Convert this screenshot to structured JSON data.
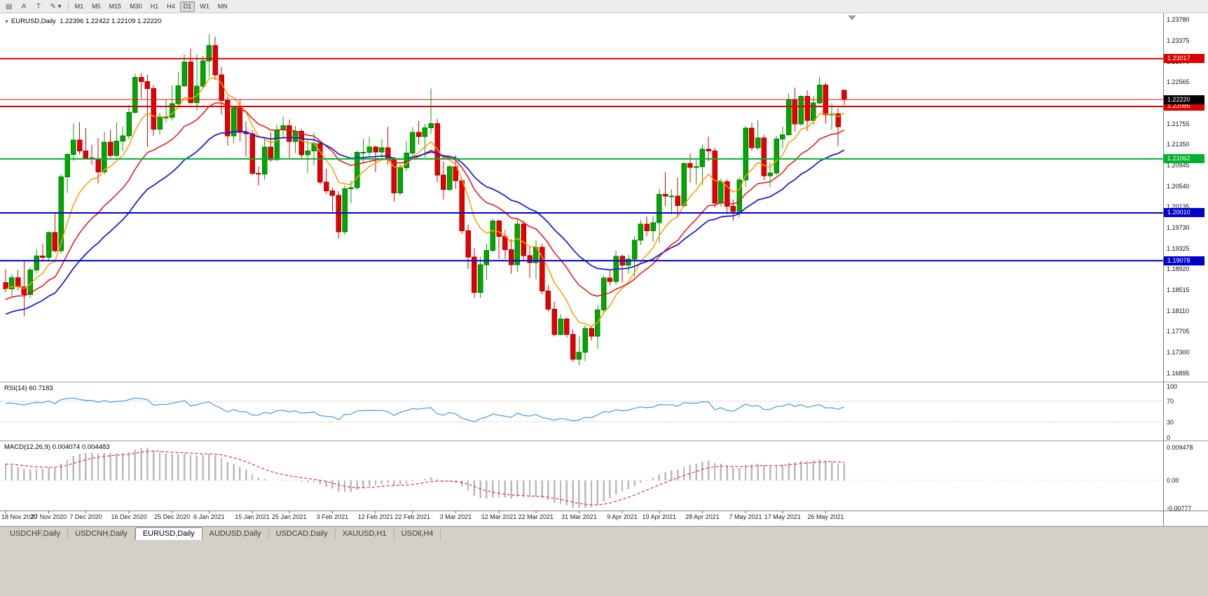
{
  "toolbar": {
    "tools": [
      {
        "name": "chart-grid-icon",
        "glyph": "▤"
      },
      {
        "name": "cursor-tool-button",
        "glyph": "A"
      },
      {
        "name": "text-tool-button",
        "glyph": "T"
      },
      {
        "name": "draw-tools-button",
        "glyph": "✎ ▾"
      }
    ],
    "timeframes": [
      "M1",
      "M5",
      "M15",
      "M30",
      "H1",
      "H4",
      "D1",
      "W1",
      "MN"
    ],
    "active_timeframe": "D1"
  },
  "main_chart": {
    "collapse_arrow": "▼",
    "title": "EURUSD,Daily",
    "ohlc_text": "1.22396 1.22422 1.22109 1.22220",
    "current_price": "1.22220"
  },
  "rsi_panel": {
    "label": "RSI(14) 60.7183",
    "current_value": "60.7183",
    "ticks": [
      "100",
      "70",
      "30",
      "0"
    ],
    "level_lines": [
      70,
      30
    ]
  },
  "macd_panel": {
    "label": "MACD(12,26,9) 0.004074 0.004483",
    "current_values": [
      "0.004074",
      "0.004483"
    ],
    "ticks": [
      "0.009478",
      "0.00",
      "-0.00777"
    ]
  },
  "tabs": {
    "items": [
      "USDCHF,Daily",
      "USDCNH,Daily",
      "EURUSD,Daily",
      "AUDUSD,Daily",
      "USDCAD,Daily",
      "XAUUSD,H1",
      "USOil,H4"
    ],
    "active_index": 2
  },
  "colors": {
    "candle_up": "#00a800",
    "candle_up_border": "#007c00",
    "candle_down": "#e60000",
    "candle_down_border": "#a80000",
    "ma_fast": "#ff9c00",
    "ma_medium": "#e81010",
    "ma_slow": "#2020cc",
    "rsi_line": "#559fdc",
    "rsi_level_dash": "#bdbdbd",
    "macd_histogram": "#b9b9b9",
    "macd_signal": "#e03030",
    "current_price_tag_bg": "#000000",
    "bid_line": "#e81010"
  },
  "chart_data": {
    "type": "candlestick",
    "title": "EURUSD,Daily",
    "y_axis": {
      "min": 1.1672,
      "max": 1.239,
      "tick_labels": [
        "1.23780",
        "1.23375",
        "1.22970",
        "1.22565",
        "1.22160",
        "1.21755",
        "1.21350",
        "1.20945",
        "1.20540",
        "1.20135",
        "1.19730",
        "1.19325",
        "1.18920",
        "1.18515",
        "1.18110",
        "1.17705",
        "1.17300",
        "1.16895"
      ]
    },
    "x_axis": {
      "ticks": [
        {
          "label": "18 Nov 2020",
          "bar": 0
        },
        {
          "label": "27 Nov 2020",
          "bar": 7
        },
        {
          "label": "7 Dec 2020",
          "bar": 13
        },
        {
          "label": "16 Dec 2020",
          "bar": 20
        },
        {
          "label": "25 Dec 2020",
          "bar": 27
        },
        {
          "label": "6 Jan 2021",
          "bar": 33
        },
        {
          "label": "15 Jan 2021",
          "bar": 40
        },
        {
          "label": "25 Jan 2021",
          "bar": 46
        },
        {
          "label": "3 Feb 2021",
          "bar": 53
        },
        {
          "label": "12 Feb 2021",
          "bar": 60
        },
        {
          "label": "22 Feb 2021",
          "bar": 66
        },
        {
          "label": "3 Mar 2021",
          "bar": 73
        },
        {
          "label": "12 Mar 2021",
          "bar": 80
        },
        {
          "label": "22 Mar 2021",
          "bar": 86
        },
        {
          "label": "31 Mar 2021",
          "bar": 93
        },
        {
          "label": "9 Apr 2021",
          "bar": 100
        },
        {
          "label": "19 Apr 2021",
          "bar": 106
        },
        {
          "label": "28 Apr 2021",
          "bar": 113
        },
        {
          "label": "7 May 2021",
          "bar": 120
        },
        {
          "label": "17 May 2021",
          "bar": 126
        },
        {
          "label": "26 May 2021",
          "bar": 133
        }
      ]
    },
    "overlays": {
      "horizontal_lines": [
        {
          "price": 1.23017,
          "label": "1.23017",
          "color": "#dd0000",
          "width": 2
        },
        {
          "price": 1.22085,
          "label": "1.22085",
          "color": "#dd0000",
          "width": 2
        },
        {
          "price": 1.21062,
          "label": "1.21062",
          "color": "#00b22c",
          "width": 2
        },
        {
          "price": 1.2001,
          "label": "1.20010",
          "color": "#0000cc",
          "width": 2
        },
        {
          "price": 1.19078,
          "label": "1.19078",
          "color": "#0000cc",
          "width": 2
        }
      ],
      "moving_average_colors": [
        "#ff9c00",
        "#e81010",
        "#2020cc"
      ]
    },
    "indicators": [
      {
        "name": "RSI",
        "params": "14",
        "current": "60.7183",
        "scale": [
          0,
          100
        ],
        "levels": [
          70,
          30
        ]
      },
      {
        "name": "MACD",
        "params": "12,26,9",
        "current_main": "0.004074",
        "current_signal": "0.004483",
        "scale_labels": [
          "0.009478",
          "0.00",
          "-0.00777"
        ]
      }
    ],
    "last_bar": {
      "open": "1.22396",
      "high": "1.22422",
      "low": "1.22109",
      "close": "1.22220"
    },
    "series": [
      {
        "name": "EURUSD",
        "format": [
          "open",
          "high",
          "low",
          "close"
        ],
        "candles": [
          [
            1.1865,
            1.1891,
            1.1847,
            1.1853
          ],
          [
            1.1853,
            1.1882,
            1.1836,
            1.1875
          ],
          [
            1.1875,
            1.189,
            1.185,
            1.1857
          ],
          [
            1.1857,
            1.1906,
            1.18,
            1.1842
          ],
          [
            1.1842,
            1.1895,
            1.1835,
            1.189
          ],
          [
            1.189,
            1.193,
            1.1883,
            1.1917
          ],
          [
            1.1917,
            1.1941,
            1.1906,
            1.1914
          ],
          [
            1.1914,
            1.1965,
            1.1908,
            1.1963
          ],
          [
            1.1963,
            1.2003,
            1.1923,
            1.1927
          ],
          [
            1.1927,
            1.2077,
            1.1922,
            1.2071
          ],
          [
            1.2071,
            1.2118,
            1.204,
            1.2115
          ],
          [
            1.2115,
            1.2175,
            1.2103,
            1.2143
          ],
          [
            1.2143,
            1.2178,
            1.2115,
            1.2122
          ],
          [
            1.2122,
            1.2166,
            1.2106,
            1.2108
          ],
          [
            1.2108,
            1.2134,
            1.2095,
            1.2106
          ],
          [
            1.2106,
            1.2147,
            1.2058,
            1.2081
          ],
          [
            1.2081,
            1.2159,
            1.2076,
            1.2139
          ],
          [
            1.2139,
            1.2163,
            1.2109,
            1.2113
          ],
          [
            1.2113,
            1.2177,
            1.211,
            1.2141
          ],
          [
            1.2141,
            1.2169,
            1.2121,
            1.2151
          ],
          [
            1.2151,
            1.2212,
            1.2144,
            1.2197
          ],
          [
            1.2197,
            1.2272,
            1.2195,
            1.2265
          ],
          [
            1.2265,
            1.2273,
            1.2224,
            1.2257
          ],
          [
            1.2257,
            1.227,
            1.213,
            1.2243
          ],
          [
            1.2243,
            1.225,
            1.2151,
            1.2164
          ],
          [
            1.2164,
            1.2196,
            1.2153,
            1.2187
          ],
          [
            1.2187,
            1.2222,
            1.2178,
            1.2187
          ],
          [
            1.2187,
            1.225,
            1.2181,
            1.2214
          ],
          [
            1.2214,
            1.2275,
            1.2208,
            1.2249
          ],
          [
            1.2249,
            1.231,
            1.2247,
            1.2295
          ],
          [
            1.2295,
            1.2321,
            1.2214,
            1.2216
          ],
          [
            1.2216,
            1.231,
            1.22,
            1.2248
          ],
          [
            1.2248,
            1.2307,
            1.2245,
            1.2297
          ],
          [
            1.2297,
            1.2349,
            1.2266,
            1.2327
          ],
          [
            1.2327,
            1.2345,
            1.226,
            1.227
          ],
          [
            1.227,
            1.2285,
            1.2193,
            1.222
          ],
          [
            1.222,
            1.2228,
            1.2132,
            1.2151
          ],
          [
            1.2151,
            1.221,
            1.2137,
            1.2206
          ],
          [
            1.2206,
            1.2223,
            1.214,
            1.2158
          ],
          [
            1.2158,
            1.218,
            1.2111,
            1.2155
          ],
          [
            1.2155,
            1.2163,
            1.2075,
            1.2078
          ],
          [
            1.2078,
            1.2091,
            1.2054,
            1.2077
          ],
          [
            1.2077,
            1.2144,
            1.2066,
            1.2129
          ],
          [
            1.2129,
            1.2158,
            1.2101,
            1.2105
          ],
          [
            1.2105,
            1.2173,
            1.2103,
            1.2163
          ],
          [
            1.2163,
            1.2189,
            1.2151,
            1.2171
          ],
          [
            1.2171,
            1.2183,
            1.2108,
            1.214
          ],
          [
            1.214,
            1.217,
            1.2118,
            1.216
          ],
          [
            1.216,
            1.2164,
            1.2108,
            1.2114
          ],
          [
            1.2114,
            1.2142,
            1.2078,
            1.2122
          ],
          [
            1.2122,
            1.2157,
            1.2093,
            1.2136
          ],
          [
            1.2136,
            1.2137,
            1.2056,
            1.2061
          ],
          [
            1.2061,
            1.2087,
            1.2038,
            1.2044
          ],
          [
            1.2044,
            1.205,
            1.2003,
            1.2035
          ],
          [
            1.2035,
            1.2043,
            1.1952,
            1.1964
          ],
          [
            1.1964,
            1.2055,
            1.1958,
            1.2048
          ],
          [
            1.2048,
            1.2064,
            1.202,
            1.205
          ],
          [
            1.205,
            1.2122,
            1.2046,
            1.2119
          ],
          [
            1.2119,
            1.2145,
            1.2097,
            1.2119
          ],
          [
            1.2119,
            1.215,
            1.2109,
            1.2129
          ],
          [
            1.2129,
            1.2133,
            1.208,
            1.212
          ],
          [
            1.212,
            1.2144,
            1.2108,
            1.2128
          ],
          [
            1.2128,
            1.2169,
            1.2096,
            1.2106
          ],
          [
            1.2106,
            1.211,
            1.2023,
            1.204
          ],
          [
            1.204,
            1.2096,
            1.2035,
            1.2089
          ],
          [
            1.2089,
            1.2141,
            1.2082,
            1.2118
          ],
          [
            1.2118,
            1.2168,
            1.2107,
            1.2158
          ],
          [
            1.2158,
            1.218,
            1.2134,
            1.215
          ],
          [
            1.215,
            1.2174,
            1.2109,
            1.2167
          ],
          [
            1.2167,
            1.2243,
            1.2155,
            1.2175
          ],
          [
            1.2175,
            1.2184,
            1.2061,
            1.2075
          ],
          [
            1.2075,
            1.2101,
            1.2027,
            1.2047
          ],
          [
            1.2047,
            1.2094,
            1.2043,
            1.2091
          ],
          [
            1.2091,
            1.2113,
            1.2048,
            1.2064
          ],
          [
            1.2064,
            1.207,
            1.196,
            1.1966
          ],
          [
            1.1966,
            1.1978,
            1.1892,
            1.1915
          ],
          [
            1.1915,
            1.1932,
            1.1836,
            1.1846
          ],
          [
            1.1846,
            1.1915,
            1.1836,
            1.19
          ],
          [
            1.19,
            1.1941,
            1.187,
            1.1928
          ],
          [
            1.1928,
            1.199,
            1.1924,
            1.1985
          ],
          [
            1.1985,
            1.1988,
            1.1911,
            1.1955
          ],
          [
            1.1955,
            1.1968,
            1.1911,
            1.1929
          ],
          [
            1.1929,
            1.195,
            1.1882,
            1.19
          ],
          [
            1.19,
            1.1989,
            1.1886,
            1.1979
          ],
          [
            1.1979,
            1.1986,
            1.1906,
            1.1918
          ],
          [
            1.1918,
            1.1936,
            1.1874,
            1.1904
          ],
          [
            1.1904,
            1.1948,
            1.1872,
            1.1934
          ],
          [
            1.1934,
            1.1941,
            1.1842,
            1.1849
          ],
          [
            1.1849,
            1.186,
            1.1809,
            1.1813
          ],
          [
            1.1813,
            1.1828,
            1.176,
            1.1764
          ],
          [
            1.1764,
            1.1804,
            1.1762,
            1.1794
          ],
          [
            1.1794,
            1.1797,
            1.1758,
            1.1764
          ],
          [
            1.1764,
            1.1774,
            1.1711,
            1.1716
          ],
          [
            1.1716,
            1.176,
            1.1704,
            1.1729
          ],
          [
            1.1729,
            1.1782,
            1.1712,
            1.1776
          ],
          [
            1.1776,
            1.178,
            1.1752,
            1.1761
          ],
          [
            1.1761,
            1.1821,
            1.1736,
            1.1812
          ],
          [
            1.1812,
            1.1878,
            1.1803,
            1.1874
          ],
          [
            1.1874,
            1.189,
            1.186,
            1.1867
          ],
          [
            1.1867,
            1.1928,
            1.1861,
            1.1916
          ],
          [
            1.1916,
            1.192,
            1.1865,
            1.1899
          ],
          [
            1.1899,
            1.1919,
            1.1882,
            1.1911
          ],
          [
            1.1911,
            1.1955,
            1.1877,
            1.1948
          ],
          [
            1.1948,
            1.1987,
            1.1938,
            1.1979
          ],
          [
            1.1979,
            1.1994,
            1.1955,
            1.1966
          ],
          [
            1.1966,
            1.1995,
            1.1945,
            1.1982
          ],
          [
            1.1982,
            1.2048,
            1.1942,
            1.2037
          ],
          [
            1.2037,
            1.208,
            1.2014,
            1.2034
          ],
          [
            1.2034,
            1.2047,
            1.1998,
            1.2034
          ],
          [
            1.2034,
            1.207,
            1.1994,
            1.2015
          ],
          [
            1.2015,
            1.21,
            1.2012,
            1.2097
          ],
          [
            1.2097,
            1.2117,
            1.206,
            1.209
          ],
          [
            1.209,
            1.2104,
            1.2056,
            1.2091
          ],
          [
            1.2091,
            1.2134,
            1.2055,
            1.2125
          ],
          [
            1.2125,
            1.215,
            1.2102,
            1.2122
          ],
          [
            1.2122,
            1.2128,
            1.2012,
            1.202
          ],
          [
            1.202,
            1.2068,
            1.2013,
            1.2062
          ],
          [
            1.2062,
            1.2067,
            1.1999,
            1.2014
          ],
          [
            1.2014,
            1.2027,
            1.1986,
            1.2004
          ],
          [
            1.2004,
            1.2071,
            1.1993,
            1.2065
          ],
          [
            1.2065,
            1.2171,
            1.2051,
            1.2166
          ],
          [
            1.2166,
            1.2177,
            1.2122,
            1.2128
          ],
          [
            1.2128,
            1.2182,
            1.2123,
            1.2147
          ],
          [
            1.2147,
            1.2153,
            1.2065,
            1.2073
          ],
          [
            1.2073,
            1.21,
            1.2051,
            1.2079
          ],
          [
            1.2079,
            1.2151,
            1.2075,
            1.2145
          ],
          [
            1.2145,
            1.2169,
            1.2126,
            1.2153
          ],
          [
            1.2153,
            1.2234,
            1.2152,
            1.2222
          ],
          [
            1.2222,
            1.2245,
            1.216,
            1.2174
          ],
          [
            1.2174,
            1.223,
            1.217,
            1.2228
          ],
          [
            1.2228,
            1.224,
            1.2161,
            1.2181
          ],
          [
            1.2181,
            1.2229,
            1.2173,
            1.2215
          ],
          [
            1.2215,
            1.2266,
            1.2212,
            1.225
          ],
          [
            1.225,
            1.2255,
            1.2175,
            1.2192
          ],
          [
            1.2192,
            1.2215,
            1.2163,
            1.2194
          ],
          [
            1.2194,
            1.2205,
            1.2131,
            1.2169
          ],
          [
            1.22396,
            1.22422,
            1.22109,
            1.2222
          ]
        ]
      }
    ]
  }
}
